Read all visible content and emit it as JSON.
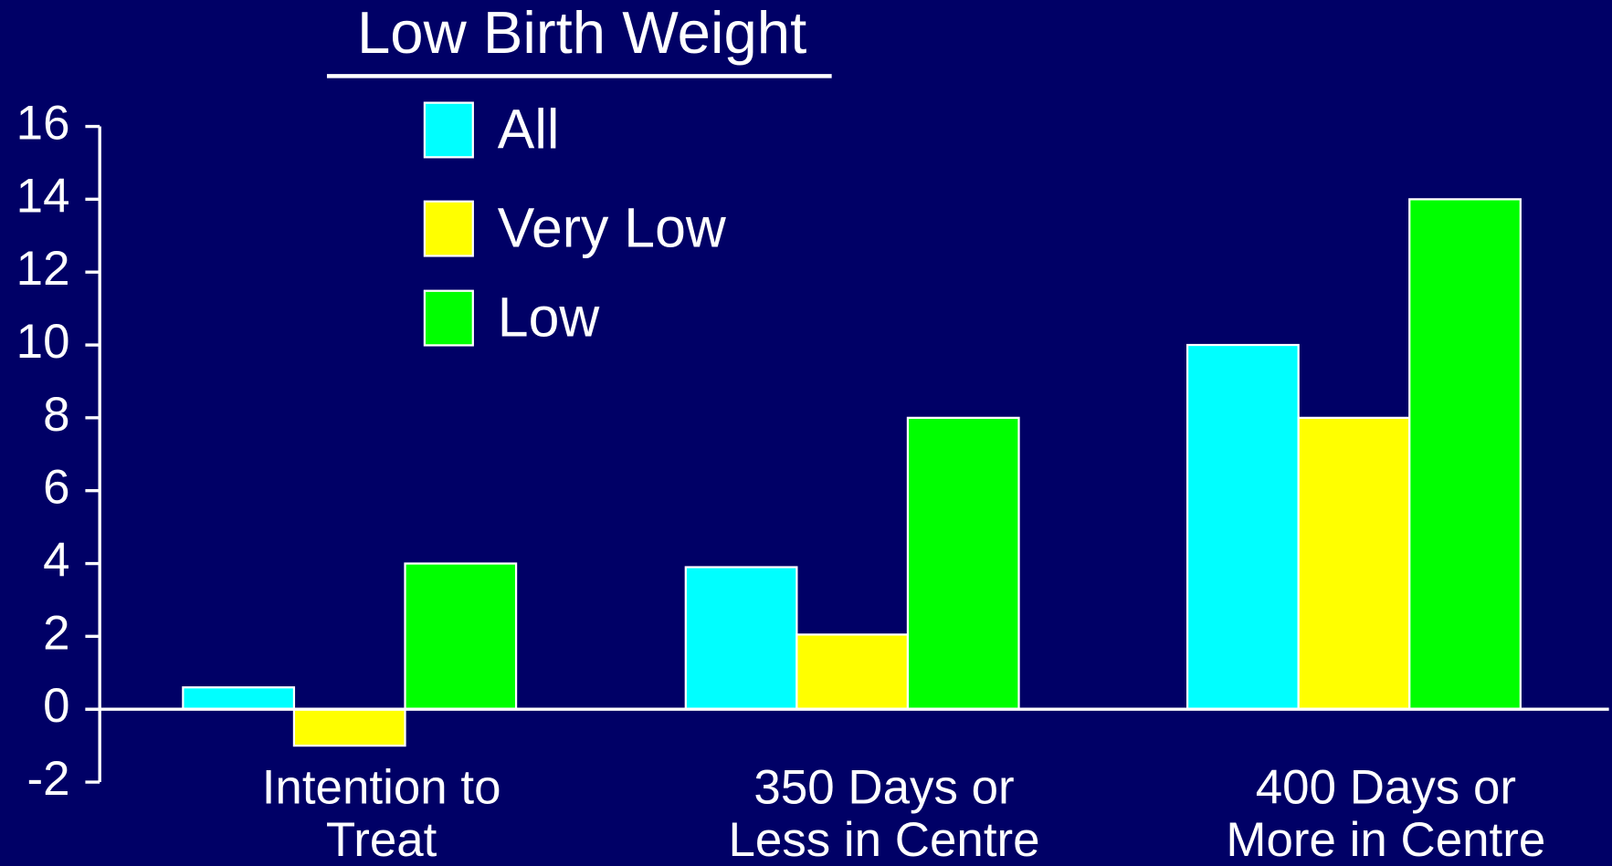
{
  "chart_data": {
    "type": "bar",
    "title": "Low Birth Weight",
    "categories": [
      "Intention to\nTreat",
      "350 Days or\nLess in Centre",
      "400 Days or\nMore in Centre"
    ],
    "series": [
      {
        "name": "All",
        "color": "#00ffff",
        "values": [
          0.6,
          3.9,
          10
        ]
      },
      {
        "name": "Very Low",
        "color": "#ffff00",
        "values": [
          -1,
          2.05,
          8
        ]
      },
      {
        "name": "Low",
        "color": "#00ff00",
        "values": [
          4,
          8,
          14
        ]
      }
    ],
    "ylim": [
      -2,
      16
    ],
    "yticks": [
      -2,
      0,
      2,
      4,
      6,
      8,
      10,
      12,
      14,
      16
    ]
  }
}
